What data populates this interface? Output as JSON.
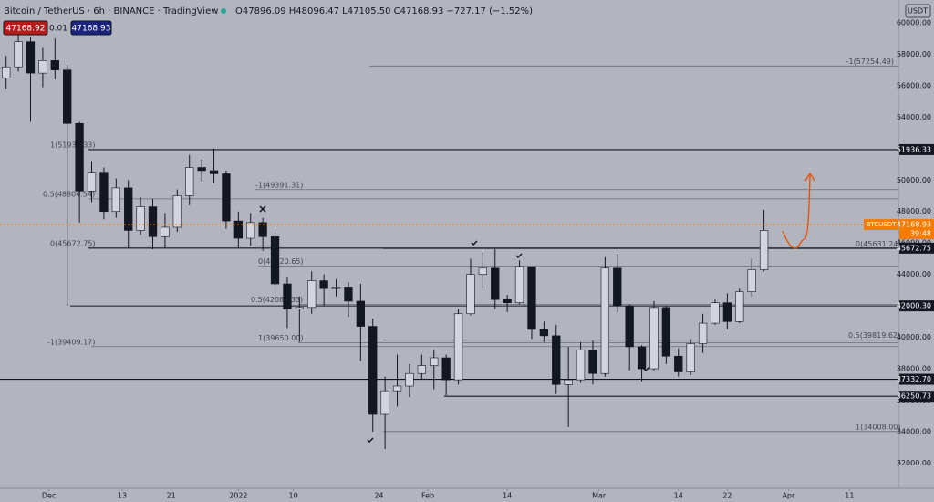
{
  "chart_data": {
    "type": "candlestick",
    "title": "Bitcoin / TetherUS · 6h · BINANCE · TradingView",
    "ohlc_readout": "O47896.09 H48096.47 L47105.50 C47168.93 −727.17 (−1.52%)",
    "bid": "47168.92",
    "spread": "0.01",
    "ask": "47168.93",
    "currency": "USDT",
    "symbol": "BTCUSDT",
    "last_price": 47168.93,
    "countdown": "39:48",
    "colors": {
      "up": "#d1d4dc",
      "down": "#131722",
      "wick": "#131722",
      "last": "#f57c00"
    },
    "x": [
      "2021-11-23",
      "2021-11-25",
      "2021-11-27",
      "2021-11-29",
      "2021-12-01",
      "2021-12-03",
      "2021-12-05",
      "2021-12-07",
      "2021-12-09",
      "2021-12-11",
      "2021-12-13",
      "2021-12-15",
      "2021-12-17",
      "2021-12-19",
      "2021-12-21",
      "2021-12-23",
      "2021-12-25",
      "2021-12-27",
      "2021-12-29",
      "2021-12-31",
      "2022-01-02",
      "2022-01-04",
      "2022-01-06",
      "2022-01-08",
      "2022-01-10",
      "2022-01-12",
      "2022-01-14",
      "2022-01-16",
      "2022-01-18",
      "2022-01-20",
      "2022-01-22",
      "2022-01-24",
      "2022-01-26",
      "2022-01-28",
      "2022-01-30",
      "2022-02-01",
      "2022-02-03",
      "2022-02-05",
      "2022-02-07",
      "2022-02-09",
      "2022-02-11",
      "2022-02-13",
      "2022-02-15",
      "2022-02-17",
      "2022-02-19",
      "2022-02-21",
      "2022-02-23",
      "2022-02-25",
      "2022-02-27",
      "2022-03-01",
      "2022-03-03",
      "2022-03-05",
      "2022-03-07",
      "2022-03-09",
      "2022-03-11",
      "2022-03-13",
      "2022-03-15",
      "2022-03-17",
      "2022-03-19",
      "2022-03-21",
      "2022-03-23",
      "2022-03-25",
      "2022-03-27"
    ],
    "open": [
      56500,
      57200,
      58800,
      56800,
      57600,
      57000,
      53600,
      49300,
      50500,
      48000,
      49500,
      46800,
      48300,
      46400,
      47000,
      49000,
      50800,
      50600,
      50400,
      47400,
      46300,
      47300,
      46400,
      43400,
      41800,
      41900,
      43600,
      43100,
      43200,
      42300,
      40700,
      35100,
      36600,
      36900,
      37700,
      38200,
      38700,
      37300,
      41500,
      44000,
      44400,
      42400,
      42200,
      44500,
      40500,
      40100,
      37000,
      37300,
      39200,
      37700,
      44400,
      42000,
      39400,
      38000,
      41900,
      38800,
      37800,
      39600,
      40900,
      42200,
      41000,
      42900,
      44300
    ],
    "high": [
      57900,
      59300,
      59100,
      58400,
      59000,
      57300,
      53700,
      51200,
      50800,
      50100,
      50000,
      48900,
      48800,
      47900,
      49400,
      51600,
      51300,
      52000,
      50600,
      48000,
      47900,
      47600,
      46900,
      43800,
      42600,
      44200,
      44000,
      43700,
      43500,
      43400,
      41200,
      37500,
      38900,
      38300,
      38900,
      39200,
      38900,
      41800,
      45000,
      45400,
      45600,
      42700,
      44900,
      44500,
      41000,
      40800,
      39400,
      39700,
      39800,
      45100,
      45300,
      42100,
      39500,
      42300,
      42000,
      39300,
      39900,
      41500,
      42400,
      42800,
      43100,
      45000,
      48100
    ],
    "low": [
      55800,
      56900,
      53700,
      55900,
      56400,
      42000,
      47300,
      48600,
      47500,
      47600,
      45700,
      46500,
      45600,
      45700,
      46700,
      48400,
      49900,
      49800,
      46900,
      45700,
      45800,
      45500,
      42600,
      40600,
      39700,
      41500,
      42000,
      42600,
      41300,
      38500,
      34000,
      32900,
      35600,
      36200,
      37300,
      36700,
      36300,
      37000,
      41400,
      43200,
      41800,
      41600,
      42100,
      39900,
      39700,
      36400,
      34300,
      37100,
      37000,
      37500,
      41600,
      37900,
      37200,
      37900,
      38300,
      37500,
      37600,
      39000,
      40800,
      40500,
      40900,
      42600,
      44200
    ],
    "close": [
      57200,
      58800,
      56800,
      57600,
      57000,
      53600,
      49300,
      50500,
      48000,
      49500,
      46800,
      48300,
      46400,
      47000,
      49000,
      50800,
      50600,
      50400,
      47400,
      46300,
      47300,
      46400,
      43400,
      41800,
      41900,
      43600,
      43100,
      43200,
      42300,
      40700,
      35100,
      36600,
      36900,
      37700,
      38200,
      38700,
      37300,
      41500,
      44000,
      44400,
      42400,
      42200,
      44500,
      40500,
      40100,
      37000,
      37300,
      39200,
      37700,
      44400,
      42000,
      39400,
      38000,
      41900,
      38800,
      37800,
      39600,
      40900,
      42200,
      41000,
      42900,
      44300,
      46800
    ],
    "xlim": [
      "2021-11-23",
      "2022-04-19"
    ],
    "xticks": [
      {
        "value": "2021-12-01",
        "label": "Dec"
      },
      {
        "value": "2021-12-13",
        "label": "13"
      },
      {
        "value": "2021-12-21",
        "label": "21"
      },
      {
        "value": "2022-01-01",
        "label": "2022"
      },
      {
        "value": "2022-01-10",
        "label": "10"
      },
      {
        "value": "2022-01-24",
        "label": "24"
      },
      {
        "value": "2022-02-01",
        "label": "Feb"
      },
      {
        "value": "2022-02-14",
        "label": "14"
      },
      {
        "value": "2022-03-01",
        "label": "Mar"
      },
      {
        "value": "2022-03-14",
        "label": "14"
      },
      {
        "value": "2022-03-22",
        "label": "22"
      },
      {
        "value": "2022-04-01",
        "label": "Apr"
      },
      {
        "value": "2022-04-11",
        "label": "11"
      }
    ],
    "ylim": [
      30400,
      61450
    ],
    "yticks": [
      {
        "value": 32000,
        "label": "32000.00"
      },
      {
        "value": 34000,
        "label": "34000.00"
      },
      {
        "value": 36000,
        "label": "36000.00"
      },
      {
        "value": 38000,
        "label": "38000.00"
      },
      {
        "value": 40000,
        "label": "40000.00"
      },
      {
        "value": 42000,
        "label": "42000.00"
      },
      {
        "value": 44000,
        "label": "44000.00"
      },
      {
        "value": 46000,
        "label": "46000.00"
      },
      {
        "value": 48000,
        "label": "48000.00"
      },
      {
        "value": 50000,
        "label": "50000.00"
      },
      {
        "value": 52000,
        "label": "52000.00"
      },
      {
        "value": 54000,
        "label": "54000.00"
      },
      {
        "value": 56000,
        "label": "56000.00"
      },
      {
        "value": 58000,
        "label": "58000.00"
      },
      {
        "value": 60000,
        "label": "60000.00"
      }
    ],
    "levels": [
      51936.33,
      45672.75,
      42000.3,
      37332.7,
      36250.73
    ],
    "level_labels": [
      "51936.33",
      "45672.75",
      "42000.30",
      "37332.70",
      "36250.73"
    ],
    "fibs": [
      {
        "value": 57254.49,
        "label": "-1(57254.49)"
      },
      {
        "value": 51936.33,
        "label": "1(51936.33)"
      },
      {
        "value": 48804.54,
        "label": "0.5(48804.54)"
      },
      {
        "value": 45672.75,
        "label": "0(45672.75)"
      },
      {
        "value": 49391.31,
        "label": "-1(49391.31)"
      },
      {
        "value": 44520.65,
        "label": "0(44520.65)"
      },
      {
        "value": 42085.33,
        "label": "0.5(42085.33)"
      },
      {
        "value": 39650,
        "label": "1(39650.00)"
      },
      {
        "value": 39409.17,
        "label": "-1(39409.17)"
      },
      {
        "value": 45631.24,
        "label": "0(45631.24)"
      },
      {
        "value": 39819.62,
        "label": "0.5(39819.62)"
      },
      {
        "value": 34008,
        "label": "1(34008.00)"
      }
    ]
  }
}
